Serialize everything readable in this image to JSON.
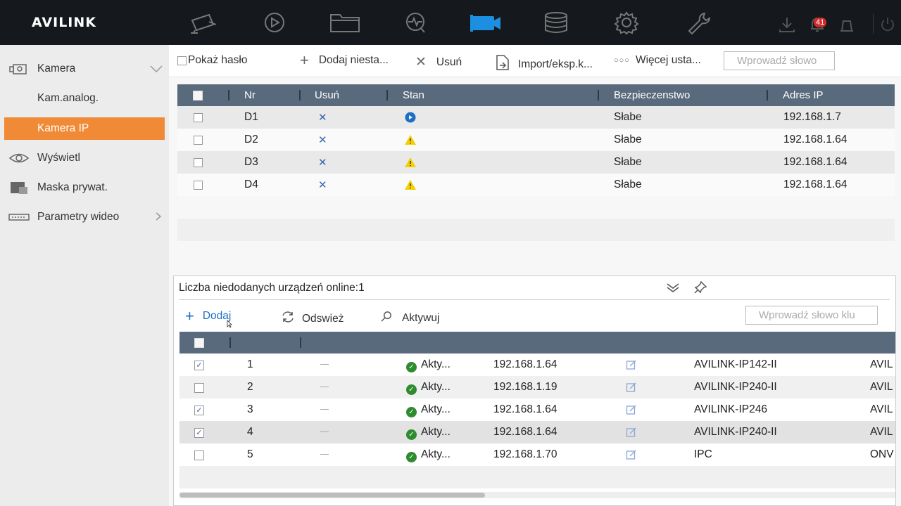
{
  "app": {
    "logo": "AVILINK",
    "alarm_count": "41"
  },
  "topnav": {
    "items": [
      {
        "name": "live-view-camera-icon"
      },
      {
        "name": "playback-icon"
      },
      {
        "name": "file-management-icon"
      },
      {
        "name": "smart-analysis-icon"
      },
      {
        "name": "camera-management-icon",
        "active": true
      },
      {
        "name": "storage-icon"
      },
      {
        "name": "settings-icon"
      },
      {
        "name": "maintenance-icon"
      }
    ]
  },
  "sidebar": {
    "items": [
      {
        "label": "Kamera",
        "icon": "camera-icon",
        "expanded": true
      },
      {
        "label": "Kam.analog."
      },
      {
        "label": "Kamera IP",
        "active": true
      },
      {
        "label": "Wyświetl",
        "icon": "eye-icon"
      },
      {
        "label": "Maska prywat.",
        "icon": "privacy-mask-icon"
      },
      {
        "label": "Parametry wideo",
        "icon": "video-params-icon"
      }
    ]
  },
  "toolbar": {
    "show_password": "Pokaż hasło",
    "add_custom": "Dodaj niesta...",
    "delete": "Usuń",
    "import_export": "Import/eksp.k...",
    "more_settings": "Więcej usta...",
    "search_placeholder": "Wprowadź słowo"
  },
  "camera_table": {
    "headers": [
      "Nr",
      "Usuń",
      "Stan",
      "Bezpieczenstwo",
      "Adres IP"
    ],
    "rows": [
      {
        "nr": "D1",
        "status": "online",
        "security": "Słabe",
        "ip": "192.168.1.7"
      },
      {
        "nr": "D2",
        "status": "warning",
        "security": "Słabe",
        "ip": "192.168.1.64"
      },
      {
        "nr": "D3",
        "status": "warning",
        "security": "Słabe",
        "ip": "192.168.1.64"
      },
      {
        "nr": "D4",
        "status": "warning",
        "security": "Słabe",
        "ip": "192.168.1.64"
      }
    ]
  },
  "online_panel": {
    "title": "Liczba niedodanych urządzeń online:1",
    "add": "Dodaj",
    "refresh": "Odswież",
    "activate": "Aktywuj",
    "search_placeholder": "Wprowadź słowo klu",
    "rows": [
      {
        "no": "1",
        "checked": true,
        "status": "Akty...",
        "ip": "192.168.1.64",
        "model": "AVILINK-IP142-II",
        "vendor": "AVIL"
      },
      {
        "no": "2",
        "checked": false,
        "status": "Akty...",
        "ip": "192.168.1.19",
        "model": "AVILINK-IP240-II",
        "vendor": "AVIL"
      },
      {
        "no": "3",
        "checked": true,
        "status": "Akty...",
        "ip": "192.168.1.64",
        "model": "AVILINK-IP246",
        "vendor": "AVIL"
      },
      {
        "no": "4",
        "checked": true,
        "status": "Akty...",
        "ip": "192.168.1.64",
        "model": "AVILINK-IP240-II",
        "vendor": "AVIL"
      },
      {
        "no": "5",
        "checked": false,
        "status": "Akty...",
        "ip": "192.168.1.70",
        "model": "IPC",
        "vendor": "ONV"
      }
    ]
  },
  "colors": {
    "accent": "#f18a36",
    "topbar": "#15181d",
    "table_header": "#5a6a7d",
    "active_nav": "#1d8fe0"
  }
}
